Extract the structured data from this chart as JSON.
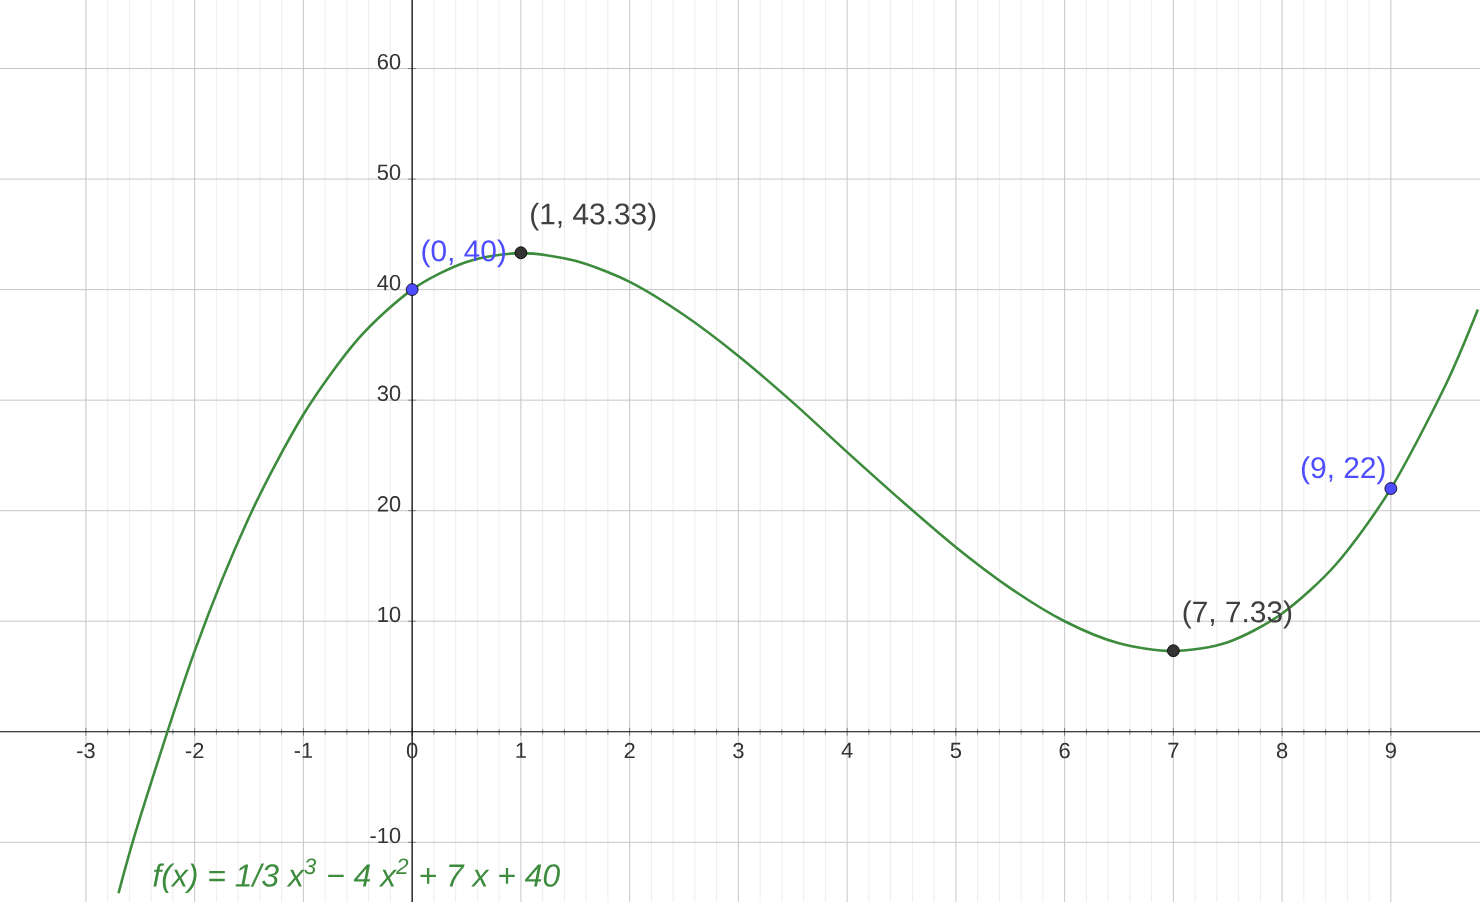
{
  "chart_data": {
    "type": "line",
    "xlim": [
      -3.79,
      9.82
    ],
    "ylim": [
      -15.4,
      66.2
    ],
    "xticks": [
      -3,
      -2,
      -1,
      0,
      1,
      2,
      3,
      4,
      5,
      6,
      7,
      8,
      9
    ],
    "yticks": [
      -10,
      10,
      20,
      30,
      40,
      50,
      60
    ],
    "grid": true,
    "series": [
      {
        "color": "#3d8b3d",
        "marker": "none",
        "x": [
          -2.7,
          -2.5,
          -2,
          -1.5,
          -1,
          -0.5,
          0,
          0.5,
          1,
          1.5,
          2,
          2.5,
          3,
          3.5,
          4,
          4.5,
          5,
          5.5,
          6,
          6.5,
          7,
          7.5,
          8,
          8.5,
          9,
          9.5,
          9.8
        ],
        "values": [
          -14.6,
          -7.7,
          7.3,
          19.4,
          28.7,
          35.5,
          40,
          42.5,
          43.3,
          42.6,
          40.7,
          37.7,
          34,
          29.8,
          25.3,
          20.9,
          16.7,
          13,
          10,
          8,
          7.3,
          8.1,
          10.7,
          15.2,
          22,
          31.3,
          38.2
        ]
      },
      {
        "type": "scatter",
        "color": "#4d4dff",
        "marker": "circle",
        "x": [
          0,
          9
        ],
        "values": [
          40,
          22
        ]
      },
      {
        "type": "scatter",
        "color": "#333333",
        "marker": "circle",
        "x": [
          1,
          7
        ],
        "values": [
          43.33,
          7.33
        ]
      }
    ],
    "annotations": [
      {
        "text": "(0, 40)",
        "x": 0,
        "y": 40
      },
      {
        "text": "(1, 43.33)",
        "x": 1,
        "y": 43.33
      },
      {
        "text": "(7, 7.33)",
        "x": 7,
        "y": 7.33
      },
      {
        "text": "(9, 22)",
        "x": 9,
        "y": 22
      },
      "f(x) = 1/3 x$^{3}$ − 4 x$^{2}$ + 7 x + 40"
    ]
  }
}
